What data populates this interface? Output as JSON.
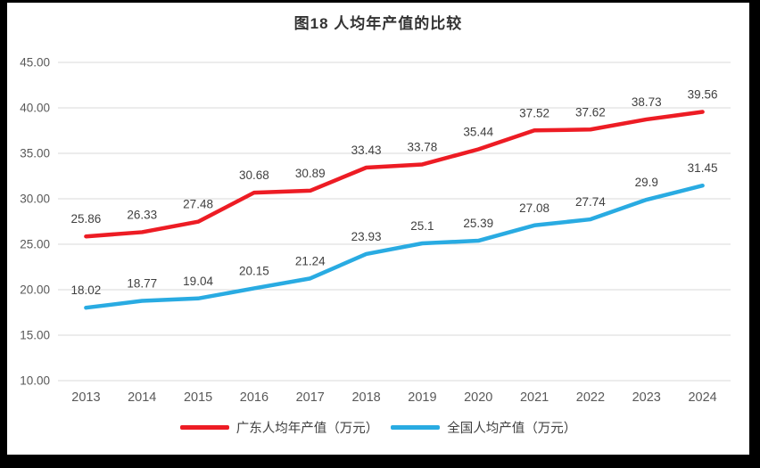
{
  "frame": {
    "background": "#000000",
    "surface_background": "#ffffff"
  },
  "chart_data": {
    "type": "line",
    "title": "图18 人均年产值的比较",
    "categories": [
      "2013",
      "2014",
      "2015",
      "2016",
      "2017",
      "2018",
      "2019",
      "2020",
      "2021",
      "2022",
      "2023",
      "2024"
    ],
    "series": [
      {
        "name": "广东人均年产值（万元）",
        "color": "#ED1C24",
        "values": [
          25.86,
          26.33,
          27.48,
          30.68,
          30.89,
          33.43,
          33.78,
          35.44,
          37.52,
          37.62,
          38.73,
          39.56
        ],
        "labels": [
          "25.86",
          "26.33",
          "27.48",
          "30.68",
          "30.89",
          "33.43",
          "33.78",
          "35.44",
          "37.52",
          "37.62",
          "38.73",
          "39.56"
        ]
      },
      {
        "name": "全国人均产值（万元）",
        "color": "#29ABE2",
        "values": [
          18.02,
          18.77,
          19.04,
          20.15,
          21.24,
          23.93,
          25.1,
          25.39,
          27.08,
          27.74,
          29.9,
          31.45
        ],
        "labels": [
          "18.02",
          "18.77",
          "19.04",
          "20.15",
          "21.24",
          "23.93",
          "25.1",
          "25.39",
          "27.08",
          "27.74",
          "29.9",
          "31.45"
        ]
      }
    ],
    "y_axis": {
      "min": 10,
      "max": 45,
      "step": 5,
      "tick_labels": [
        "10.00",
        "15.00",
        "20.00",
        "25.00",
        "30.00",
        "35.00",
        "40.00",
        "45.00"
      ]
    },
    "x_axis": {
      "label": ""
    },
    "grid": true,
    "legend_position": "bottom"
  },
  "colors": {
    "gridline": "#D9D9D9",
    "axis_text": "#595959",
    "data_label": "#404040",
    "title_text": "#333333",
    "legend_text": "#404040"
  }
}
